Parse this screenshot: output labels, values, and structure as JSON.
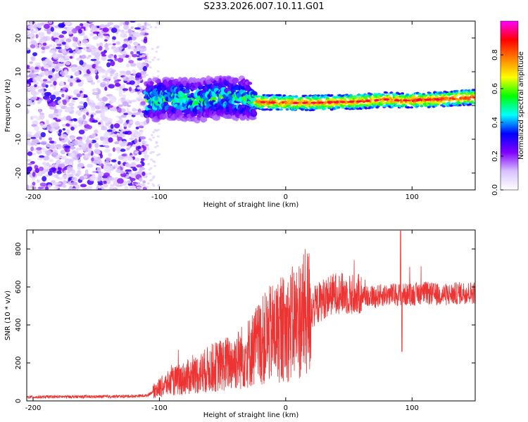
{
  "title": "S233.2026.007.10.11.G01",
  "chart_data": [
    {
      "type": "heatmap",
      "title": "S233.2026.007.10.11.G01",
      "xlabel": "Height of straight line (km)",
      "ylabel": "Frequency (Hz)",
      "xlim": [
        -205,
        150
      ],
      "ylim": [
        -25,
        25
      ],
      "xticks": [
        -200,
        -100,
        0,
        100
      ],
      "yticks": [
        -20,
        -10,
        0,
        10,
        20
      ],
      "colorbar": {
        "label": "Normalized spectral amplitude",
        "range": [
          0,
          1
        ],
        "ticks": [
          0.0,
          0.2,
          0.4,
          0.6,
          0.8
        ],
        "colormap": [
          "#ffffff",
          "#d8c2ff",
          "#8000ff",
          "#0000ff",
          "#00ffff",
          "#00ff00",
          "#ffff00",
          "#ff8000",
          "#ff0000",
          "#ff00ff"
        ]
      },
      "ridge": {
        "x": [
          -110,
          -90,
          -70,
          -50,
          -30,
          -20,
          0,
          20,
          40,
          60,
          80,
          90,
          100,
          120,
          150
        ],
        "freq": [
          1.5,
          2.0,
          1.5,
          2.5,
          2.0,
          1.0,
          0.8,
          0.8,
          1.0,
          1.2,
          1.8,
          1.5,
          1.5,
          1.8,
          2.5
        ]
      }
    },
    {
      "type": "line",
      "xlabel": "Height of straight line (km)",
      "ylabel": "SNR (10 * v/v)",
      "xlim": [
        -205,
        150
      ],
      "ylim": [
        0,
        900
      ],
      "xticks": [
        -200,
        -100,
        0,
        100
      ],
      "yticks": [
        0,
        200,
        400,
        600,
        800
      ],
      "series": [
        {
          "name": "SNR",
          "color": "#ee3333",
          "x": [
            -205,
            -180,
            -150,
            -120,
            -110,
            -100,
            -90,
            -80,
            -70,
            -60,
            -50,
            -40,
            -30,
            -20,
            -10,
            0,
            10,
            20,
            30,
            40,
            50,
            60,
            70,
            80,
            90,
            100,
            110,
            120,
            130,
            140,
            150
          ],
          "y": [
            20,
            22,
            22,
            25,
            28,
            70,
            100,
            120,
            140,
            170,
            190,
            210,
            250,
            310,
            360,
            380,
            430,
            480,
            540,
            570,
            560,
            560,
            550,
            560,
            560,
            560,
            570,
            560,
            560,
            570,
            570
          ]
        }
      ]
    }
  ]
}
